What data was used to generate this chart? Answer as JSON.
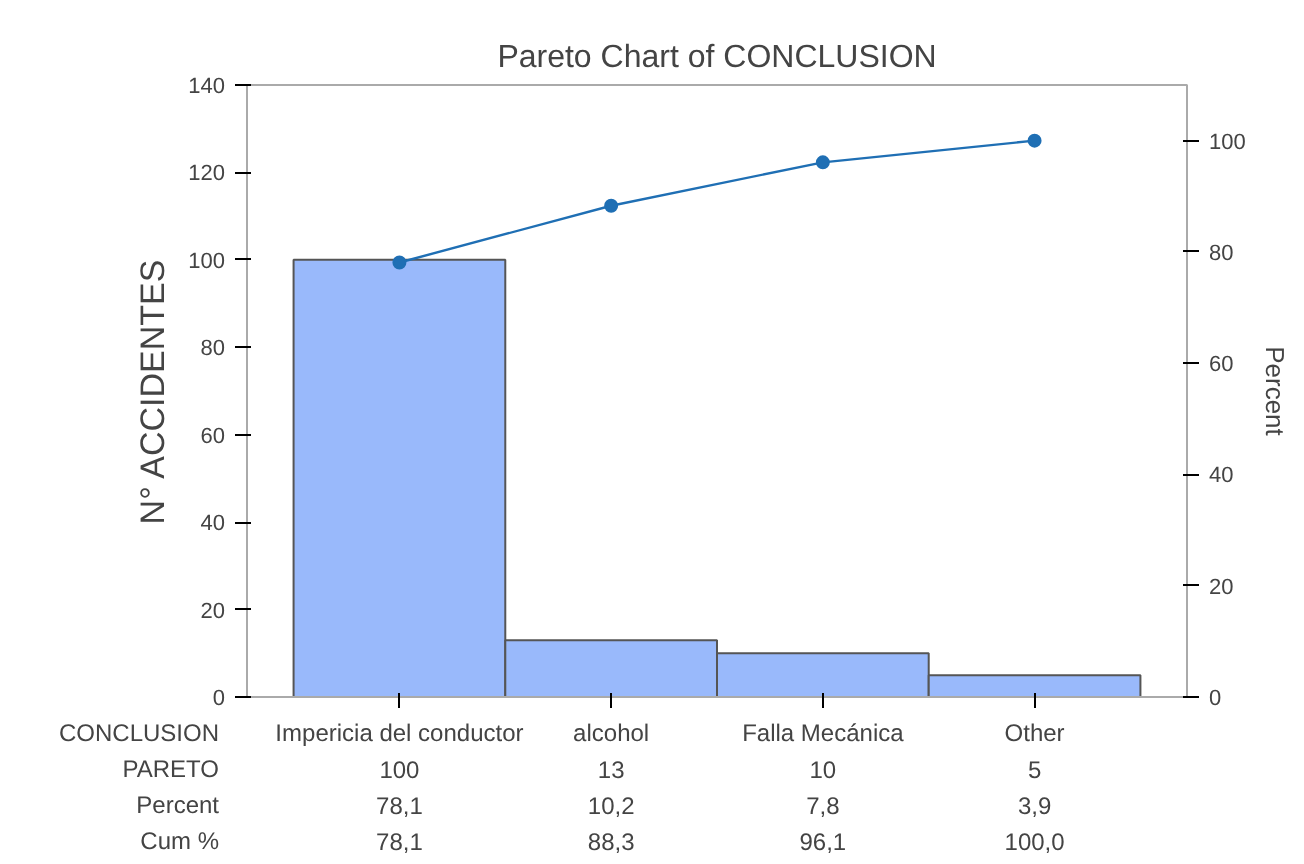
{
  "chart_data": {
    "type": "bar",
    "title": "Pareto Chart of CONCLUSION",
    "xlabel": "CONCLUSION",
    "ylabel": "N° ACCIDENTES",
    "y2label": "Percent",
    "categories": [
      "Impericia del conductor",
      "alcohol",
      "Falla Mecánica",
      "Other"
    ],
    "series": [
      {
        "type": "bar",
        "color": "#99b9fb",
        "values": [
          100,
          13,
          10,
          5
        ],
        "value_labels": [
          "100",
          "13",
          "10",
          "5"
        ]
      },
      {
        "type": "line",
        "axis": "y2",
        "color": "#1f6fb4",
        "values": [
          78.1,
          88.3,
          96.1,
          100.0
        ],
        "value_labels": [
          "78,1",
          "88,3",
          "96,1",
          "100,0"
        ]
      }
    ],
    "annotations": [
      "PARETO",
      "Percent",
      "Cum %",
      "78,1",
      "10,2",
      "7,8",
      "3,9"
    ],
    "ylim": [
      0,
      140
    ],
    "yticks": [
      0,
      20,
      40,
      60,
      80,
      100,
      120,
      140
    ],
    "y2lim": [
      0,
      110
    ],
    "y2ticks": [
      0,
      20,
      40,
      60,
      80,
      100
    ],
    "marker": "circle",
    "grid": false
  }
}
